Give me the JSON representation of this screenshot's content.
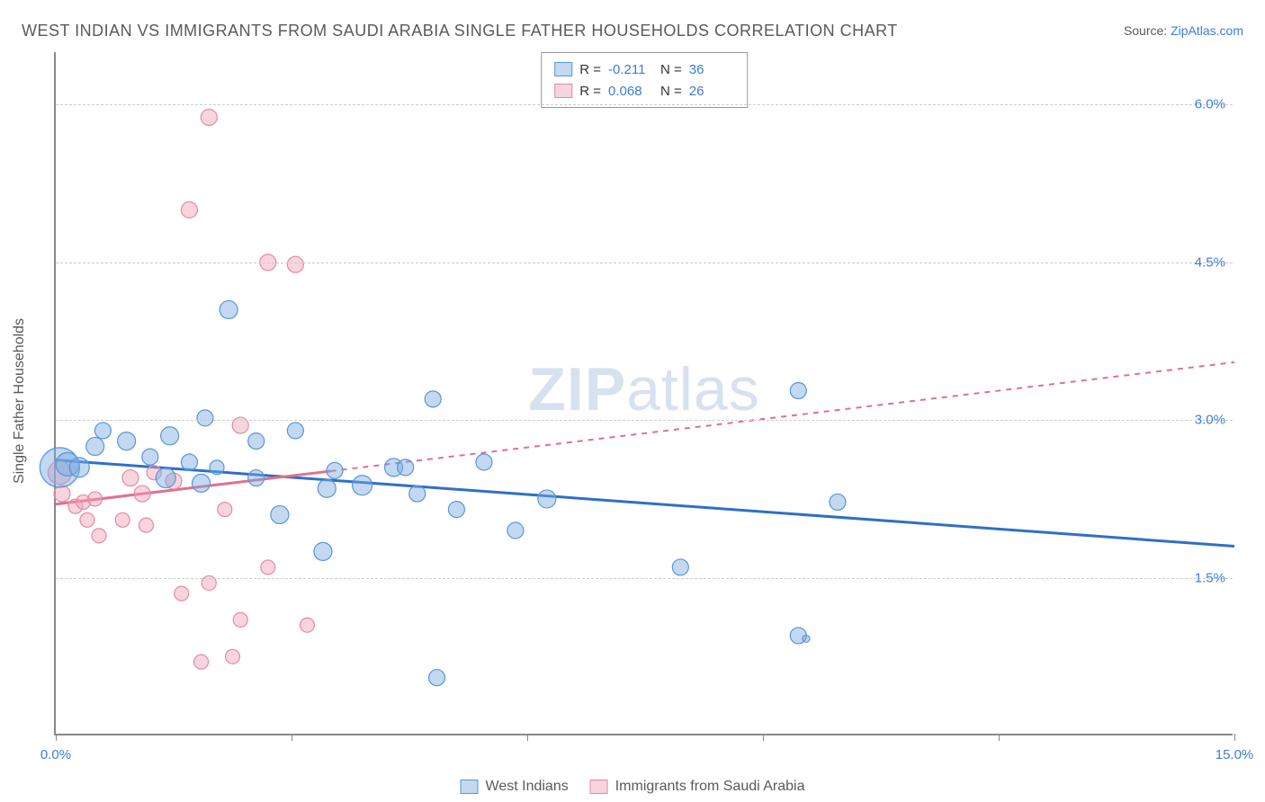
{
  "title": "WEST INDIAN VS IMMIGRANTS FROM SAUDI ARABIA SINGLE FATHER HOUSEHOLDS CORRELATION CHART",
  "source_label": "Source: ",
  "source_name": "ZipAtlas.com",
  "ylabel": "Single Father Households",
  "watermark": "ZIPatlas",
  "chart": {
    "type": "scatter-correlation",
    "xlim": [
      0.0,
      15.0
    ],
    "ylim": [
      0.0,
      6.5
    ],
    "x_ticks": [
      0.0,
      3.0,
      6.0,
      9.0,
      12.0,
      15.0
    ],
    "x_tick_labels": [
      "0.0%",
      "",
      "",
      "",
      "",
      "15.0%"
    ],
    "y_ticks": [
      1.5,
      3.0,
      4.5,
      6.0
    ],
    "y_tick_labels": [
      "1.5%",
      "3.0%",
      "4.5%",
      "6.0%"
    ],
    "grid_color": "#cccccc",
    "axis_color": "#888888",
    "background_color": "#ffffff",
    "tick_label_color": "#3b7dd8",
    "series": [
      {
        "key": "west_indians",
        "label": "West Indians",
        "marker_fill": "rgba(120,170,225,0.45)",
        "marker_stroke": "#5a96d6",
        "line_color": "#2f6fc9",
        "line_dash": "none",
        "marker_r_default": 10,
        "R": "-0.211",
        "N": "36",
        "points": [
          {
            "x": 0.05,
            "y": 2.55,
            "r": 22
          },
          {
            "x": 0.15,
            "y": 2.58,
            "r": 13
          },
          {
            "x": 0.3,
            "y": 2.55,
            "r": 11
          },
          {
            "x": 0.5,
            "y": 2.75,
            "r": 10
          },
          {
            "x": 0.6,
            "y": 2.9,
            "r": 9
          },
          {
            "x": 0.9,
            "y": 2.8,
            "r": 10
          },
          {
            "x": 1.2,
            "y": 2.65,
            "r": 9
          },
          {
            "x": 1.4,
            "y": 2.45,
            "r": 11
          },
          {
            "x": 1.45,
            "y": 2.85,
            "r": 10
          },
          {
            "x": 1.7,
            "y": 2.6,
            "r": 9
          },
          {
            "x": 1.85,
            "y": 2.4,
            "r": 10
          },
          {
            "x": 1.9,
            "y": 3.02,
            "r": 9
          },
          {
            "x": 2.05,
            "y": 2.55,
            "r": 8
          },
          {
            "x": 2.2,
            "y": 4.05,
            "r": 10
          },
          {
            "x": 2.55,
            "y": 2.45,
            "r": 9
          },
          {
            "x": 2.55,
            "y": 2.8,
            "r": 9
          },
          {
            "x": 2.85,
            "y": 2.1,
            "r": 10
          },
          {
            "x": 3.05,
            "y": 2.9,
            "r": 9
          },
          {
            "x": 3.4,
            "y": 1.75,
            "r": 10
          },
          {
            "x": 3.45,
            "y": 2.35,
            "r": 10
          },
          {
            "x": 3.55,
            "y": 2.52,
            "r": 9
          },
          {
            "x": 3.9,
            "y": 2.38,
            "r": 11
          },
          {
            "x": 4.3,
            "y": 2.55,
            "r": 10
          },
          {
            "x": 4.45,
            "y": 2.55,
            "r": 9
          },
          {
            "x": 4.6,
            "y": 2.3,
            "r": 9
          },
          {
            "x": 4.8,
            "y": 3.2,
            "r": 9
          },
          {
            "x": 4.85,
            "y": 0.55,
            "r": 9
          },
          {
            "x": 5.1,
            "y": 2.15,
            "r": 9
          },
          {
            "x": 5.45,
            "y": 2.6,
            "r": 9
          },
          {
            "x": 5.85,
            "y": 1.95,
            "r": 9
          },
          {
            "x": 6.25,
            "y": 2.25,
            "r": 10
          },
          {
            "x": 7.95,
            "y": 1.6,
            "r": 9
          },
          {
            "x": 9.45,
            "y": 3.28,
            "r": 9
          },
          {
            "x": 9.95,
            "y": 2.22,
            "r": 9
          },
          {
            "x": 9.45,
            "y": 0.95,
            "r": 9
          },
          {
            "x": 9.55,
            "y": 0.92,
            "r": 4
          }
        ],
        "trend": {
          "x1": 0.0,
          "y1": 2.62,
          "x2": 15.0,
          "y2": 1.8
        },
        "trend_solid_until_x": 15.0
      },
      {
        "key": "saudi",
        "label": "Immigrants from Saudi Arabia",
        "marker_fill": "rgba(240,160,180,0.45)",
        "marker_stroke": "#e38ba3",
        "line_color": "#e07090",
        "line_dash": "6,6",
        "marker_r_default": 9,
        "R": "0.068",
        "N": "26",
        "points": [
          {
            "x": 0.05,
            "y": 2.5,
            "r": 13
          },
          {
            "x": 0.08,
            "y": 2.3,
            "r": 9
          },
          {
            "x": 0.25,
            "y": 2.18,
            "r": 8
          },
          {
            "x": 0.35,
            "y": 2.22,
            "r": 8
          },
          {
            "x": 0.4,
            "y": 2.05,
            "r": 8
          },
          {
            "x": 0.5,
            "y": 2.25,
            "r": 8
          },
          {
            "x": 0.55,
            "y": 1.9,
            "r": 8
          },
          {
            "x": 0.85,
            "y": 2.05,
            "r": 8
          },
          {
            "x": 0.95,
            "y": 2.45,
            "r": 9
          },
          {
            "x": 1.1,
            "y": 2.3,
            "r": 9
          },
          {
            "x": 1.15,
            "y": 2.0,
            "r": 8
          },
          {
            "x": 1.25,
            "y": 2.5,
            "r": 8
          },
          {
            "x": 1.5,
            "y": 2.42,
            "r": 9
          },
          {
            "x": 1.6,
            "y": 1.35,
            "r": 8
          },
          {
            "x": 1.7,
            "y": 5.0,
            "r": 9
          },
          {
            "x": 1.85,
            "y": 0.7,
            "r": 8
          },
          {
            "x": 1.95,
            "y": 1.45,
            "r": 8
          },
          {
            "x": 1.95,
            "y": 5.88,
            "r": 9
          },
          {
            "x": 2.15,
            "y": 2.15,
            "r": 8
          },
          {
            "x": 2.25,
            "y": 0.75,
            "r": 8
          },
          {
            "x": 2.35,
            "y": 2.95,
            "r": 9
          },
          {
            "x": 2.35,
            "y": 1.1,
            "r": 8
          },
          {
            "x": 2.7,
            "y": 1.6,
            "r": 8
          },
          {
            "x": 2.7,
            "y": 4.5,
            "r": 9
          },
          {
            "x": 3.05,
            "y": 4.48,
            "r": 9
          },
          {
            "x": 3.2,
            "y": 1.05,
            "r": 8
          }
        ],
        "trend": {
          "x1": 0.0,
          "y1": 2.2,
          "x2": 15.0,
          "y2": 3.55
        },
        "trend_solid_until_x": 3.5
      }
    ]
  },
  "legend_top": {
    "r_label": "R =",
    "n_label": "N ="
  }
}
